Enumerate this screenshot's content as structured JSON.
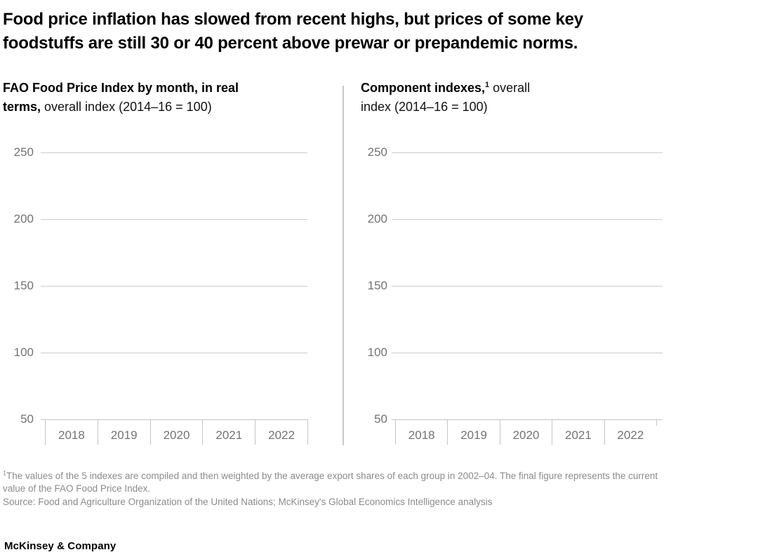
{
  "title": {
    "lines": [
      "Food price inflation has slowed from recent highs, but prices of some key",
      "foodstuffs are still 30 or 40 percent above prewar or prepandemic norms."
    ]
  },
  "charts": [
    {
      "heading": {
        "line1_bold": "FAO Food Price Index by month, in real",
        "line2_bold": "terms,",
        "line2_regular": " overall index (2014–16 = 100)"
      }
    },
    {
      "heading": {
        "line1_bold": "Component indexes,",
        "line1_sup": "1",
        "line1_regular": " overall",
        "line2_regular": "index (2014–16 = 100)"
      }
    }
  ],
  "chart_data": [
    {
      "type": "line",
      "title": "FAO Food Price Index by month, in real terms, overall index (2014–16 = 100)",
      "x_categories": [
        "2018",
        "2019",
        "2020",
        "2021",
        "2022"
      ],
      "yticks": [
        "250",
        "200",
        "150",
        "100",
        "50"
      ],
      "ylim": [
        50,
        250
      ],
      "xlabel": "",
      "ylabel": "",
      "grid": "horizontal gridlines at 50-unit intervals",
      "legend": "none",
      "series": [],
      "note": "empty axes — no data series rendered in the screenshot"
    },
    {
      "type": "line",
      "title": "Component indexes, overall index (2014–16 = 100)",
      "x_categories": [
        "2018",
        "2019",
        "2020",
        "2021",
        "2022"
      ],
      "yticks": [
        "250",
        "200",
        "150",
        "100",
        "50"
      ],
      "ylim": [
        50,
        250
      ],
      "xlabel": "",
      "ylabel": "",
      "grid": "horizontal gridlines at 50-unit intervals",
      "legend": "none",
      "series": [],
      "note": "empty axes — no data series rendered; axis extends slightly past 2022 ending in a short tick"
    }
  ],
  "footnote": {
    "sup": "1",
    "line1": "The values of the 5 indexes are compiled and then weighted by the average export shares of each group in 2002–04. The final figure represents the current",
    "line2": "value of the FAO Food Price Index."
  },
  "footer": {
    "source": "Source: Food and Agriculture Organization of the United Nations; McKinsey's Global Economics Intelligence analysis",
    "logo": "McKinsey & Company"
  },
  "colors": {
    "background": "#ffffff",
    "text_primary": "#000000",
    "axis_label": "#737373",
    "gridline": "#cccccc",
    "axis_line": "#c4c4c4",
    "divider": "#c8c8c8",
    "footnote_text": "#8b8b8b"
  }
}
